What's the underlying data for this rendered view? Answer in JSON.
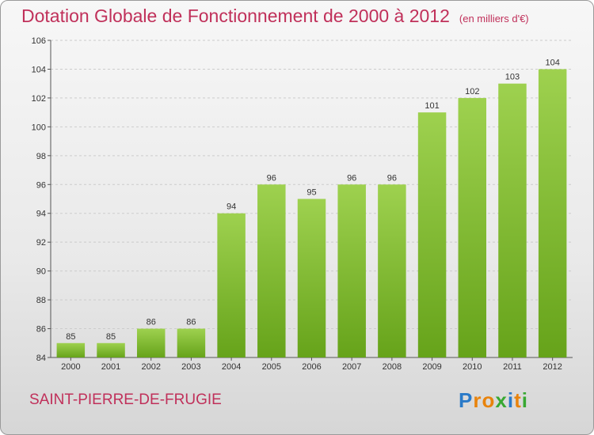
{
  "header": {
    "title": "Dotation Globale de Fonctionnement de 2000 à 2012",
    "subtitle": "(en milliers d'€)"
  },
  "footer": {
    "city": "SAINT-PIERRE-DE-FRUGIE",
    "logo_text": "Proxiti"
  },
  "colors": {
    "bar_top": "#9ed14f",
    "bar_bottom": "#66a31a",
    "title": "#c0305a",
    "grid": "#cccccc"
  },
  "chart_data": {
    "type": "bar",
    "title": "Dotation Globale de Fonctionnement de 2000 à 2012",
    "subtitle": "(en milliers d'€)",
    "categories": [
      "2000",
      "2001",
      "2002",
      "2003",
      "2004",
      "2005",
      "2006",
      "2007",
      "2008",
      "2009",
      "2010",
      "2011",
      "2012"
    ],
    "values": [
      85,
      85,
      86,
      86,
      94,
      96,
      95,
      96,
      96,
      101,
      102,
      103,
      104
    ],
    "xlabel": "",
    "ylabel": "",
    "ylim": [
      84,
      106
    ],
    "yticks": [
      84,
      86,
      88,
      90,
      92,
      94,
      96,
      98,
      100,
      102,
      104,
      106
    ],
    "grid": "horizontal dashed"
  }
}
